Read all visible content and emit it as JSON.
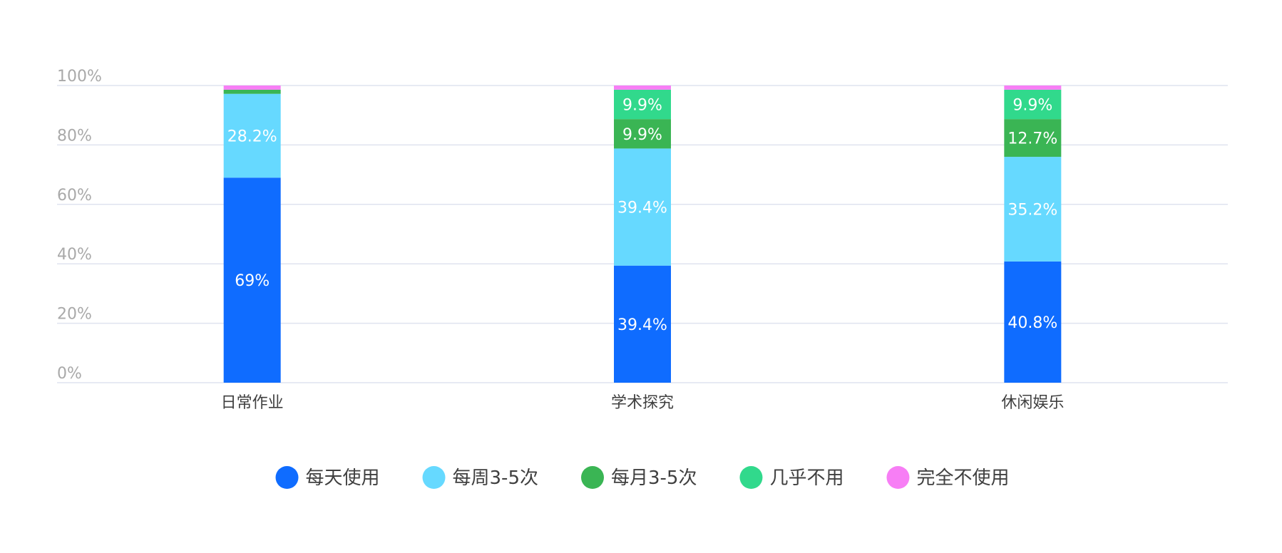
{
  "chart_data": {
    "type": "bar",
    "stacked": true,
    "title": "",
    "xlabel": "",
    "ylabel": "",
    "ylim": [
      0,
      100
    ],
    "y_ticks": [
      "0%",
      "20%",
      "40%",
      "60%",
      "80%",
      "100%"
    ],
    "grid": true,
    "legend_position": "bottom",
    "categories": [
      "日常作业",
      "学术探究",
      "休闲娱乐"
    ],
    "series": [
      {
        "name": "每天使用",
        "color": "#0f6cff",
        "values": [
          69.0,
          39.4,
          40.8
        ],
        "labels": [
          "69%",
          "39.4%",
          "40.8%"
        ]
      },
      {
        "name": "每周3-5次",
        "color": "#66d9ff",
        "values": [
          28.2,
          39.4,
          35.2
        ],
        "labels": [
          "28.2%",
          "39.4%",
          "35.2%"
        ]
      },
      {
        "name": "每月3-5次",
        "color": "#3ab554",
        "values": [
          1.4,
          9.9,
          12.7
        ],
        "labels": [
          "",
          "9.9%",
          "12.7%"
        ]
      },
      {
        "name": "几乎不用",
        "color": "#31d98c",
        "values": [
          0.0,
          9.9,
          9.9
        ],
        "labels": [
          "",
          "9.9%",
          "9.9%"
        ]
      },
      {
        "name": "完全不使用",
        "color": "#f77ef5",
        "values": [
          1.4,
          1.4,
          1.4
        ],
        "labels": [
          "",
          "",
          ""
        ]
      }
    ]
  }
}
